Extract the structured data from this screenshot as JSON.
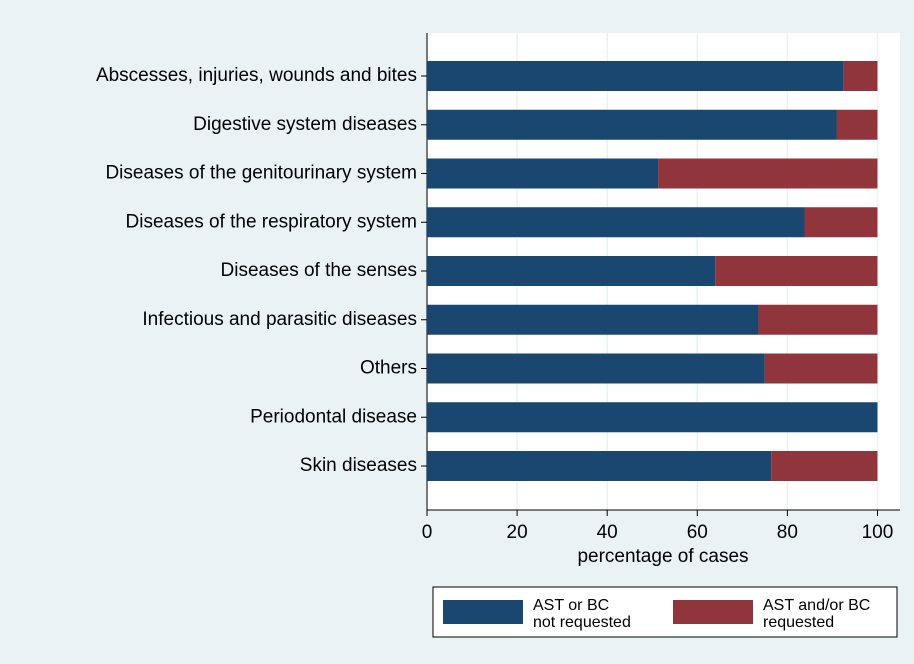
{
  "chart_data": {
    "type": "stacked-barh",
    "categories": [
      "Abscesses, injuries, wounds and bites",
      "Digestive system diseases",
      "Diseases of the genitourinary system",
      "Diseases of the respiratory system",
      "Diseases of the senses",
      "Infectious and parasitic diseases",
      "Others",
      "Periodontal disease",
      "Skin diseases"
    ],
    "series": [
      {
        "name": "AST or BC\nnot requested",
        "color": "#1a476f",
        "values": [
          92.5,
          91,
          51.3,
          83.8,
          64,
          73.6,
          75,
          100,
          76.4
        ]
      },
      {
        "name": "AST and/or BC\nrequested",
        "color": "#90353b",
        "values": [
          7.5,
          9,
          48.7,
          16.2,
          36,
          26.4,
          25,
          0,
          23.6
        ]
      }
    ],
    "xlim": [
      0,
      105
    ],
    "xticks": [
      0,
      20,
      40,
      60,
      80,
      100
    ],
    "xlabel": "percentage of cases",
    "grid": true,
    "legend": "bottom"
  }
}
